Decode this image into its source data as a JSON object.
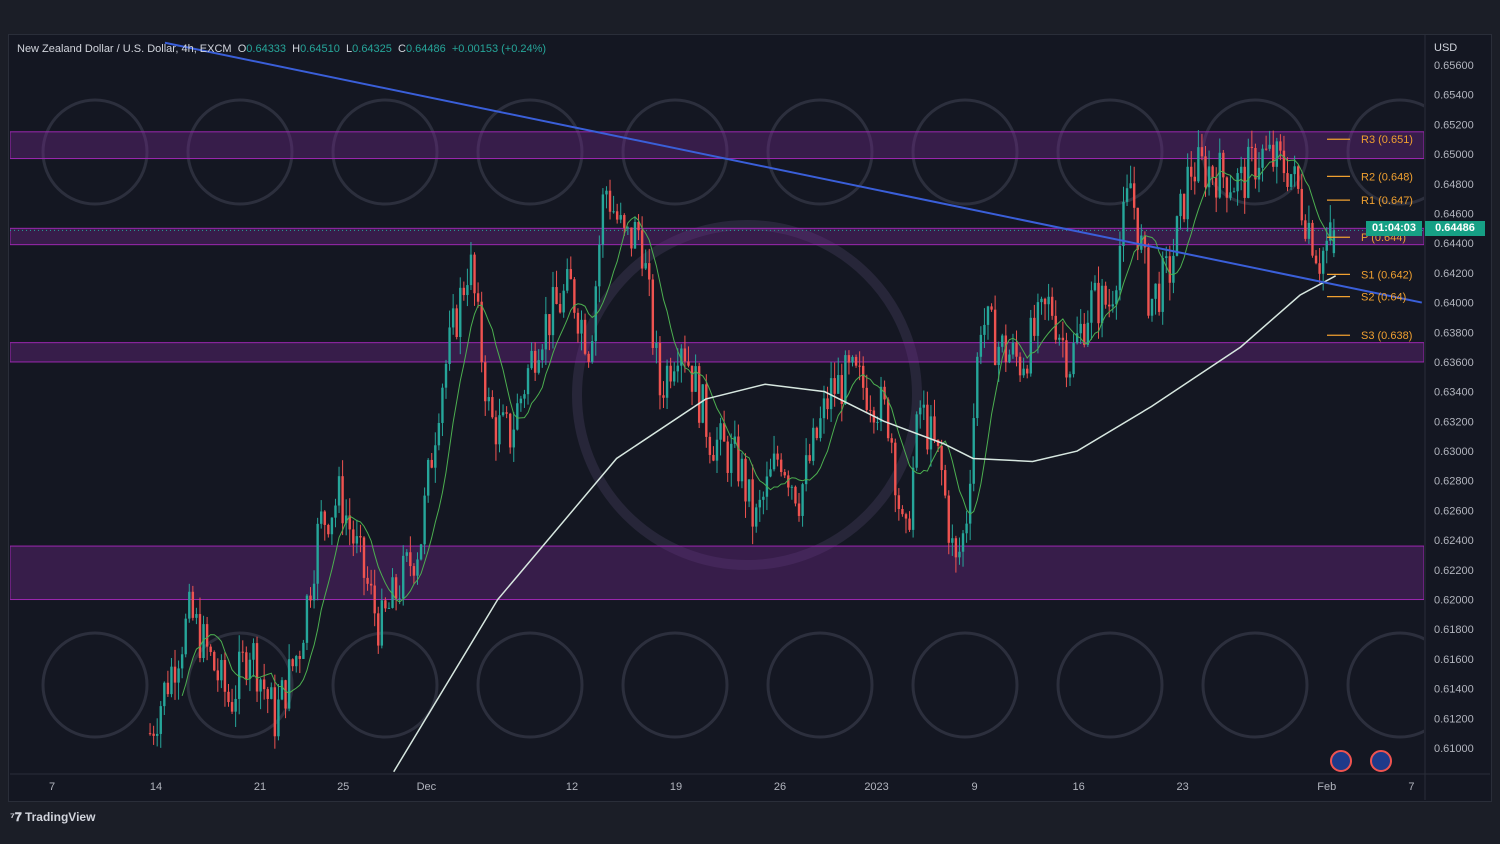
{
  "header": {
    "symbol": "New Zealand Dollar / U.S. Dollar, 4h, EXCM",
    "o_label": "O",
    "o": "0.64333",
    "h_label": "H",
    "h": "0.64510",
    "l_label": "L",
    "l": "0.64325",
    "c_label": "C",
    "c": "0.64486",
    "change": "+0.00153 (+0.24%)"
  },
  "price_axis": {
    "currency": "USD",
    "last_price": "0.64486",
    "countdown": "01:04:03"
  },
  "brand": "TradingView",
  "colors": {
    "up": "#26a69a",
    "down": "#ef5350",
    "zone": "#9c27b0",
    "trend": "#3a5fd9",
    "ma_fast": "#4caf50",
    "ma_slow": "#d7e7e0",
    "pivot": "#f0a030"
  },
  "chart_data": {
    "type": "candlestick",
    "title": "New Zealand Dollar / U.S. Dollar, 4h, EXCM",
    "ylim": [
      0.6084,
      0.6575
    ],
    "xlim": [
      -2.8,
      92.8
    ],
    "y_ticks": [
      "0.65600",
      "0.65400",
      "0.65200",
      "0.65000",
      "0.64800",
      "0.64600",
      "0.64400",
      "0.64200",
      "0.64000",
      "0.63800",
      "0.63600",
      "0.63400",
      "0.63200",
      "0.63000",
      "0.62800",
      "0.62600",
      "0.62400",
      "0.62200",
      "0.62000",
      "0.61800",
      "0.61600",
      "0.61400",
      "0.61200",
      "0.61000"
    ],
    "x_ticks": [
      {
        "label": "7",
        "t": 0
      },
      {
        "label": "14",
        "t": 7
      },
      {
        "label": "21",
        "t": 14
      },
      {
        "label": "25",
        "t": 19.6
      },
      {
        "label": "Dec",
        "t": 25.2
      },
      {
        "label": "12",
        "t": 35
      },
      {
        "label": "19",
        "t": 42
      },
      {
        "label": "26",
        "t": 49
      },
      {
        "label": "2023",
        "t": 55.5
      },
      {
        "label": "9",
        "t": 62.1
      },
      {
        "label": "16",
        "t": 69.1
      },
      {
        "label": "23",
        "t": 76.1
      },
      {
        "label": "Feb",
        "t": 85.8
      },
      {
        "label": "7",
        "t": 91.5
      }
    ],
    "price_path": [
      [
        6.6,
        0.611
      ],
      [
        9.3,
        0.619
      ],
      [
        12.0,
        0.613
      ],
      [
        13.3,
        0.617
      ],
      [
        15.0,
        0.612
      ],
      [
        16.7,
        0.617
      ],
      [
        18.0,
        0.625
      ],
      [
        19.4,
        0.627
      ],
      [
        22.1,
        0.618
      ],
      [
        23.4,
        0.621
      ],
      [
        24.8,
        0.624
      ],
      [
        26.1,
        0.634
      ],
      [
        28.1,
        0.643
      ],
      [
        29.5,
        0.632
      ],
      [
        30.8,
        0.631
      ],
      [
        32.8,
        0.638
      ],
      [
        34.9,
        0.641
      ],
      [
        36.2,
        0.637
      ],
      [
        37.2,
        0.648
      ],
      [
        38.6,
        0.644
      ],
      [
        39.6,
        0.645
      ],
      [
        40.9,
        0.634
      ],
      [
        42.3,
        0.638
      ],
      [
        44.3,
        0.631
      ],
      [
        46.3,
        0.629
      ],
      [
        47.3,
        0.625
      ],
      [
        49.0,
        0.63
      ],
      [
        50.3,
        0.627
      ],
      [
        52.4,
        0.634
      ],
      [
        53.7,
        0.635
      ],
      [
        55.1,
        0.634
      ],
      [
        56.4,
        0.632
      ],
      [
        57.4,
        0.623
      ],
      [
        58.4,
        0.633
      ],
      [
        59.8,
        0.629
      ],
      [
        60.8,
        0.622
      ],
      [
        61.5,
        0.625
      ],
      [
        62.5,
        0.639
      ],
      [
        63.8,
        0.637
      ],
      [
        65.2,
        0.636
      ],
      [
        67.2,
        0.64
      ],
      [
        68.5,
        0.636
      ],
      [
        69.9,
        0.64
      ],
      [
        71.2,
        0.64
      ],
      [
        72.6,
        0.648
      ],
      [
        73.9,
        0.64
      ],
      [
        75.2,
        0.642
      ],
      [
        76.6,
        0.649
      ],
      [
        77.9,
        0.649
      ],
      [
        80.0,
        0.648
      ],
      [
        81.3,
        0.65
      ],
      [
        83.3,
        0.649
      ],
      [
        84.7,
        0.645
      ],
      [
        85.3,
        0.643
      ],
      [
        86.4,
        0.64486
      ]
    ],
    "ma_slow": [
      [
        23.0,
        0.6084
      ],
      [
        30.0,
        0.62
      ],
      [
        38.0,
        0.6295
      ],
      [
        44.0,
        0.6335
      ],
      [
        48.0,
        0.6345
      ],
      [
        52.0,
        0.634
      ],
      [
        56.0,
        0.632
      ],
      [
        60.0,
        0.6305
      ],
      [
        62.0,
        0.6295
      ],
      [
        66.0,
        0.6293
      ],
      [
        69.0,
        0.63
      ],
      [
        74.0,
        0.633
      ],
      [
        80.0,
        0.637
      ],
      [
        84.0,
        0.6405
      ],
      [
        86.4,
        0.6418
      ]
    ],
    "zones": [
      [
        0.6497,
        0.6515
      ],
      [
        0.6439,
        0.645
      ],
      [
        0.636,
        0.6373
      ],
      [
        0.62,
        0.6236
      ]
    ],
    "trendline": [
      [
        7.6,
        0.6575
      ],
      [
        92.2,
        0.64
      ]
    ],
    "pivots": [
      {
        "label": "R3 (0.651)",
        "level": 0.651
      },
      {
        "label": "R2 (0.648)",
        "level": 0.6485
      },
      {
        "label": "R1 (0.647)",
        "level": 0.6469
      },
      {
        "label": "P (0.644)",
        "level": 0.6444
      },
      {
        "label": "S1 (0.642)",
        "level": 0.6419
      },
      {
        "label": "S2 (0.64)",
        "level": 0.6404
      },
      {
        "label": "S3 (0.638)",
        "level": 0.6378
      }
    ]
  }
}
